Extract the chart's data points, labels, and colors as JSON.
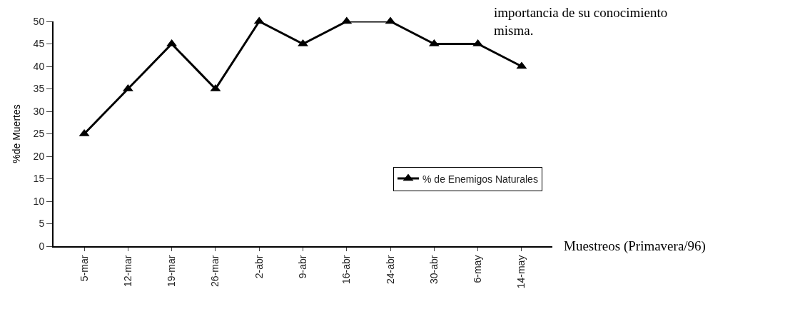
{
  "chart_data": {
    "type": "line",
    "categories": [
      "5-mar",
      "12-mar",
      "19-mar",
      "26-mar",
      "2-abr",
      "9-abr",
      "16-abr",
      "24-abr",
      "30-abr",
      "6-may",
      "14-may"
    ],
    "series": [
      {
        "name": "% de Enemigos Naturales",
        "color": "#000000",
        "values": [
          25,
          35,
          45,
          35,
          50,
          45,
          50,
          50,
          45,
          45,
          40
        ]
      }
    ],
    "xlabel": "Muestreos (Primavera/96)",
    "ylabel": "%de Muertes",
    "ylim": [
      0,
      50
    ],
    "yticks": [
      0,
      5,
      10,
      15,
      20,
      25,
      30,
      35,
      40,
      45,
      50
    ],
    "annotations": [
      "importancia de su conocimiento\nmisma."
    ],
    "legend": "right",
    "marker": "triangle",
    "line_style": "solid"
  }
}
